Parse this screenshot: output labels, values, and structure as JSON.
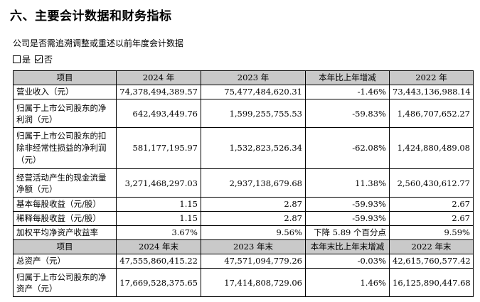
{
  "title": "六、主要会计数据和财务指标",
  "question": "公司是否需追溯调整或重述以前年度会计数据",
  "options": [
    {
      "label": "是",
      "checked": false
    },
    {
      "label": "否",
      "checked": true
    }
  ],
  "table1": {
    "headers": [
      "项目",
      "2024 年",
      "2023 年",
      "本年比上年增减",
      "2022 年"
    ],
    "rows": [
      [
        "营业收入（元）",
        "74,378,494,389.57",
        "75,477,484,620.31",
        "-1.46%",
        "73,443,136,988.14"
      ],
      [
        "归属于上市公司股东的净利润（元）",
        "642,493,449.76",
        "1,599,255,755.53",
        "-59.83%",
        "1,486,707,652.27"
      ],
      [
        "归属于上市公司股东的扣除非经常性损益的净利润（元）",
        "581,177,195.97",
        "1,532,823,526.34",
        "-62.08%",
        "1,424,880,489.08"
      ],
      [
        "经营活动产生的现金流量净额（元）",
        "3,271,468,297.03",
        "2,937,138,679.68",
        "11.38%",
        "2,560,430,612.77"
      ],
      [
        "基本每股收益（元/股）",
        "1.15",
        "2.87",
        "-59.93%",
        "2.67"
      ],
      [
        "稀释每股收益（元/股）",
        "1.15",
        "2.87",
        "-59.93%",
        "2.67"
      ],
      [
        "加权平均净资产收益率",
        "3.67%",
        "9.56%",
        "下降 5.89 个百分点",
        "9.59%"
      ]
    ]
  },
  "table2": {
    "headers": [
      "项目",
      "2024 年末",
      "2023 年末",
      "本年末比上年末增减",
      "2022 年末"
    ],
    "rows": [
      [
        "总资产（元）",
        "47,555,860,415.22",
        "47,571,094,779.26",
        "-0.03%",
        "42,615,760,577.42"
      ],
      [
        "归属于上市公司股东的净资产（元）",
        "17,669,528,375.65",
        "17,414,808,729.06",
        "1.46%",
        "16,125,890,447.68"
      ]
    ]
  }
}
